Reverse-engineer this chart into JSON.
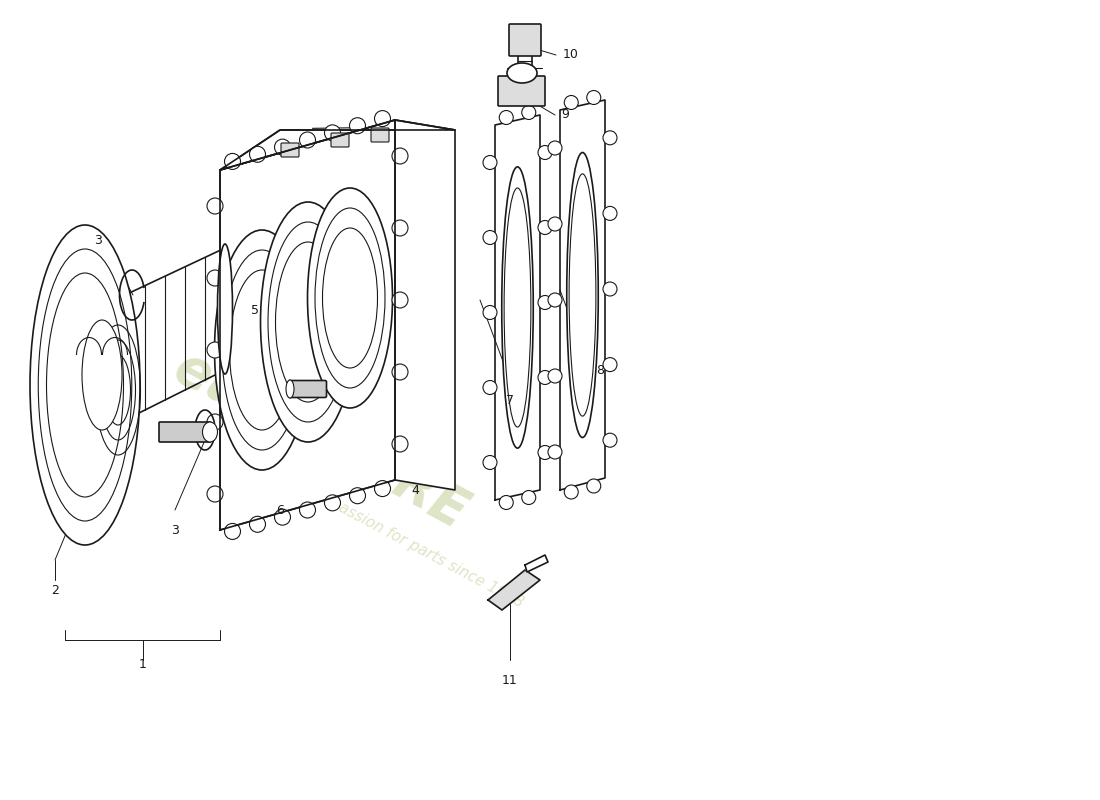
{
  "background_color": "#ffffff",
  "line_color": "#1a1a1a",
  "watermark_color1": "#c8d4a0",
  "watermark_color2": "#c8d4a0",
  "figsize": [
    11.0,
    8.0
  ],
  "dpi": 100,
  "xlim": [
    0,
    110
  ],
  "ylim": [
    0,
    80
  ]
}
